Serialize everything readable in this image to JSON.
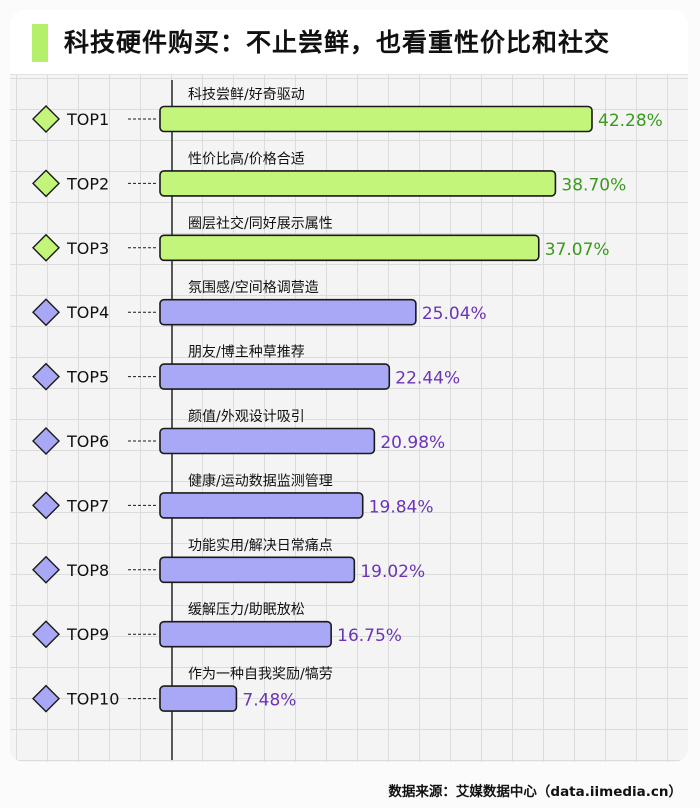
{
  "title": "科技硬件购买：不止尝鲜，也看重性价比和社交",
  "source": "数据来源：艾媒数据中心（data.iimedia.cn）",
  "colors": {
    "top_fill": "#c3f57a",
    "rest_fill": "#a9a8f6",
    "top_label": "#3a9a1c",
    "rest_label": "#6a34b8",
    "outline": "#1a1a1a"
  },
  "chart_data": {
    "type": "bar",
    "orientation": "horizontal",
    "title": "科技硬件购买：不止尝鲜，也看重性价比和社交",
    "xlim": [
      0,
      42.28
    ],
    "categories": [
      "TOP1",
      "TOP2",
      "TOP3",
      "TOP4",
      "TOP5",
      "TOP6",
      "TOP7",
      "TOP8",
      "TOP9",
      "TOP10"
    ],
    "reasons": [
      "科技尝鲜/好奇驱动",
      "性价比高/价格合适",
      "圈层社交/同好展示属性",
      "氛围感/空间格调营造",
      "朋友/博主种草推荐",
      "颜值/外观设计吸引",
      "健康/运动数据监测管理",
      "功能实用/解决日常痛点",
      "缓解压力/助眠放松",
      "作为一种自我奖励/犒劳"
    ],
    "values": [
      42.28,
      38.7,
      37.07,
      25.04,
      22.44,
      20.98,
      19.84,
      19.02,
      16.75,
      7.48
    ],
    "value_labels": [
      "42.28%",
      "38.70%",
      "37.07%",
      "25.04%",
      "22.44%",
      "20.98%",
      "19.84%",
      "19.02%",
      "16.75%",
      "7.48%"
    ],
    "highlight_count": 3
  }
}
